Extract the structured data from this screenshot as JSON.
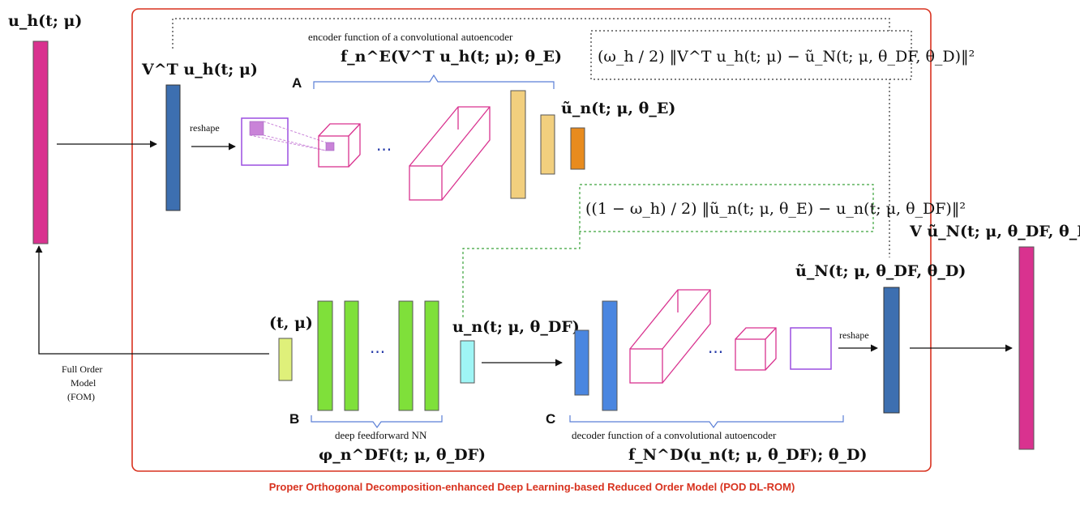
{
  "caption": "Proper Orthogonal Decomposition-enhanced Deep Learning-based Reduced Order Model (POD DL-ROM)",
  "letters": {
    "A": "A",
    "B": "B",
    "C": "C"
  },
  "labels": {
    "encoder": "encoder function of a convolutional autoencoder",
    "decoder": "decoder function of a convolutional autoencoder",
    "dffnn": "deep feedforward NN",
    "reshape_left": "reshape",
    "reshape_right": "reshape",
    "fom_line1": "Full Order",
    "fom_line2": "Model",
    "fom_line3": "(FOM)",
    "dots": "···"
  },
  "math": {
    "uh": "u_h(t; μ)",
    "VTuh": "V^T u_h(t; μ)",
    "encoder_fn": "f_n^E(V^T u_h(t; μ); θ_E)",
    "un_tilde_E": "ũ_n(t; μ, θ_E)",
    "loss_top": "(ω_h / 2) ‖V^T u_h(t; μ) − ũ_N(t; μ, θ_DF, θ_D)‖²",
    "loss_mid": "((1 − ω_h) / 2) ‖ũ_n(t; μ, θ_E) − u_n(t; μ, θ_DF)‖²",
    "t_mu": "(t, μ)",
    "un_DF": "u_n(t; μ, θ_DF)",
    "phi": "φ_n^DF(t; μ, θ_DF)",
    "decoder_fn": "f_N^D(u_n(t; μ, θ_DF); θ_D)",
    "uN_tilde": "ũ_N(t; μ, θ_DF, θ_D)",
    "V_uN": "V ũ_N(t; μ, θ_DF, θ_D)"
  },
  "colors": {
    "frame": "#d8321f",
    "magenta": "#d9328f",
    "steel_blue": "#3d6fb0",
    "purple": "#9b4fe0",
    "tan": "#f2cf7e",
    "orange": "#e88b1e",
    "green": "#7fe03a",
    "light_green": "#dff07a",
    "cyan": "#9ff5f5",
    "blue": "#4a86e0",
    "brace": "#5b7fd6"
  }
}
